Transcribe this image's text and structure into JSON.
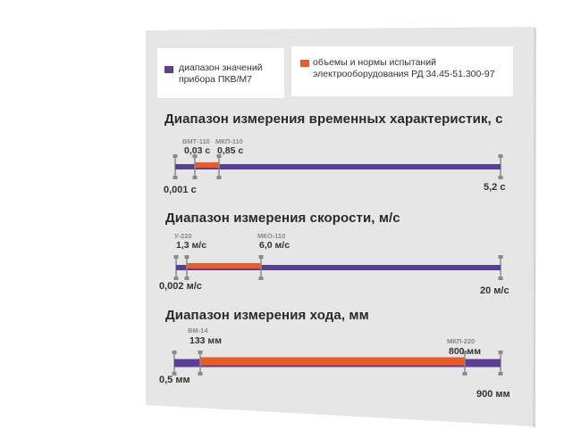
{
  "colors": {
    "device_range": "#5b3f94",
    "standard_range": "#ee5a24",
    "card_bg": "#e6e6e6",
    "marker": "#8a8a8a",
    "label_small": "#8a8a8a",
    "label_value": "#333333"
  },
  "legend": {
    "device": {
      "label": "диапазон значений прибора ПКВ/М7"
    },
    "standard": {
      "label": "объемы и нормы испытаний электрооборудования РД 34.45-51.300-97"
    }
  },
  "chart_data": [
    {
      "type": "bar",
      "title": "Диапазон измерения временных характеристик, с",
      "series": [
        {
          "name": "диапазон значений прибора ПКВ/М7",
          "range": [
            0.001,
            5.2
          ]
        },
        {
          "name": "объемы и нормы испытаний электрооборудования РД 34.45-51.300-97",
          "range": [
            0.03,
            0.85
          ]
        }
      ],
      "labels": {
        "min": "0,001 с",
        "max": "5,2 с",
        "std_min": {
          "device": "ВМТ-110",
          "value": "0,03 с"
        },
        "std_max": {
          "device": "МКП-110",
          "value": "0,85 с"
        }
      }
    },
    {
      "type": "bar",
      "title": "Диапазон измерения скорости, м/с",
      "series": [
        {
          "name": "диапазон значений прибора ПКВ/М7",
          "range": [
            0.002,
            20
          ]
        },
        {
          "name": "объемы и нормы испытаний электрооборудования РД 34.45-51.300-97",
          "range": [
            1.3,
            6.0
          ]
        }
      ],
      "labels": {
        "min": "0,002 м/с",
        "max": "20 м/с",
        "std_min": {
          "device": "У-220",
          "value": "1,3 м/с"
        },
        "std_max": {
          "device": "МКО-110",
          "value": "6,0 м/с"
        }
      }
    },
    {
      "type": "bar",
      "title": "Диапазон измерения хода, мм",
      "series": [
        {
          "name": "диапазон значений прибора ПКВ/М7",
          "range": [
            0.5,
            900
          ]
        },
        {
          "name": "объемы и нормы испытаний электрооборудования РД 34.45-51.300-97",
          "range": [
            133,
            800
          ]
        }
      ],
      "labels": {
        "min": "0,5 мм",
        "max": "900 мм",
        "std_min": {
          "device": "ВМ-14",
          "value": "133 мм"
        },
        "std_max": {
          "device": "МКП-220",
          "value": "800 мм"
        }
      }
    }
  ]
}
